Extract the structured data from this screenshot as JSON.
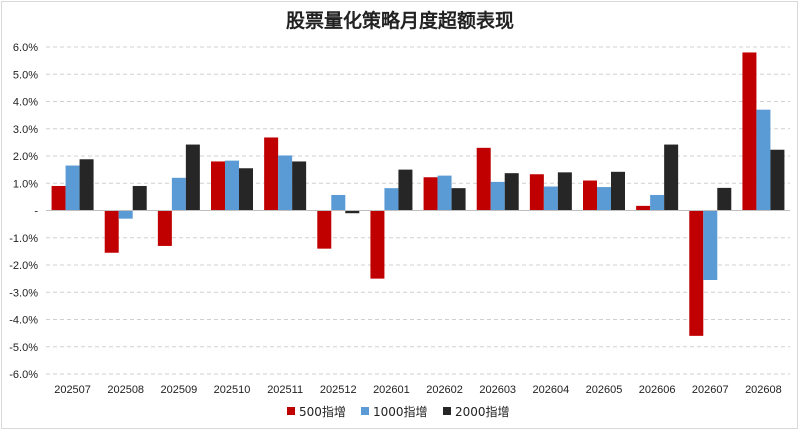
{
  "chart_data": {
    "type": "bar",
    "title": "股票量化策略月度超额表现",
    "categories": [
      "202507",
      "202508",
      "202509",
      "202510",
      "202511",
      "202512",
      "202601",
      "202602",
      "202603",
      "202604",
      "202605",
      "202606",
      "202607",
      "202608"
    ],
    "series": [
      {
        "name": "500指增",
        "color": "#c00000",
        "values": [
          0.9,
          -1.55,
          -1.3,
          1.8,
          2.68,
          -1.4,
          -2.5,
          1.22,
          2.3,
          1.33,
          1.1,
          0.17,
          -4.6,
          5.8
        ]
      },
      {
        "name": "1000指增",
        "color": "#5b9bd5",
        "values": [
          1.65,
          -0.3,
          1.2,
          1.83,
          2.02,
          0.57,
          0.82,
          1.28,
          1.05,
          0.88,
          0.86,
          0.57,
          -2.55,
          3.7
        ]
      },
      {
        "name": "2000指增",
        "color": "#262626",
        "values": [
          1.88,
          0.9,
          2.42,
          1.55,
          1.8,
          -0.1,
          1.5,
          0.82,
          1.37,
          1.4,
          1.42,
          2.42,
          0.83,
          2.23
        ]
      }
    ],
    "ylim": [
      -6,
      6
    ],
    "yticks": [
      "6.0%",
      "5.0%",
      "4.0%",
      "3.0%",
      "2.0%",
      "1.0%",
      "-",
      "-1.0%",
      "-2.0%",
      "-3.0%",
      "-4.0%",
      "-5.0%",
      "-6.0%"
    ],
    "grid": "horizontal dashed",
    "legend": "bottom-center"
  }
}
